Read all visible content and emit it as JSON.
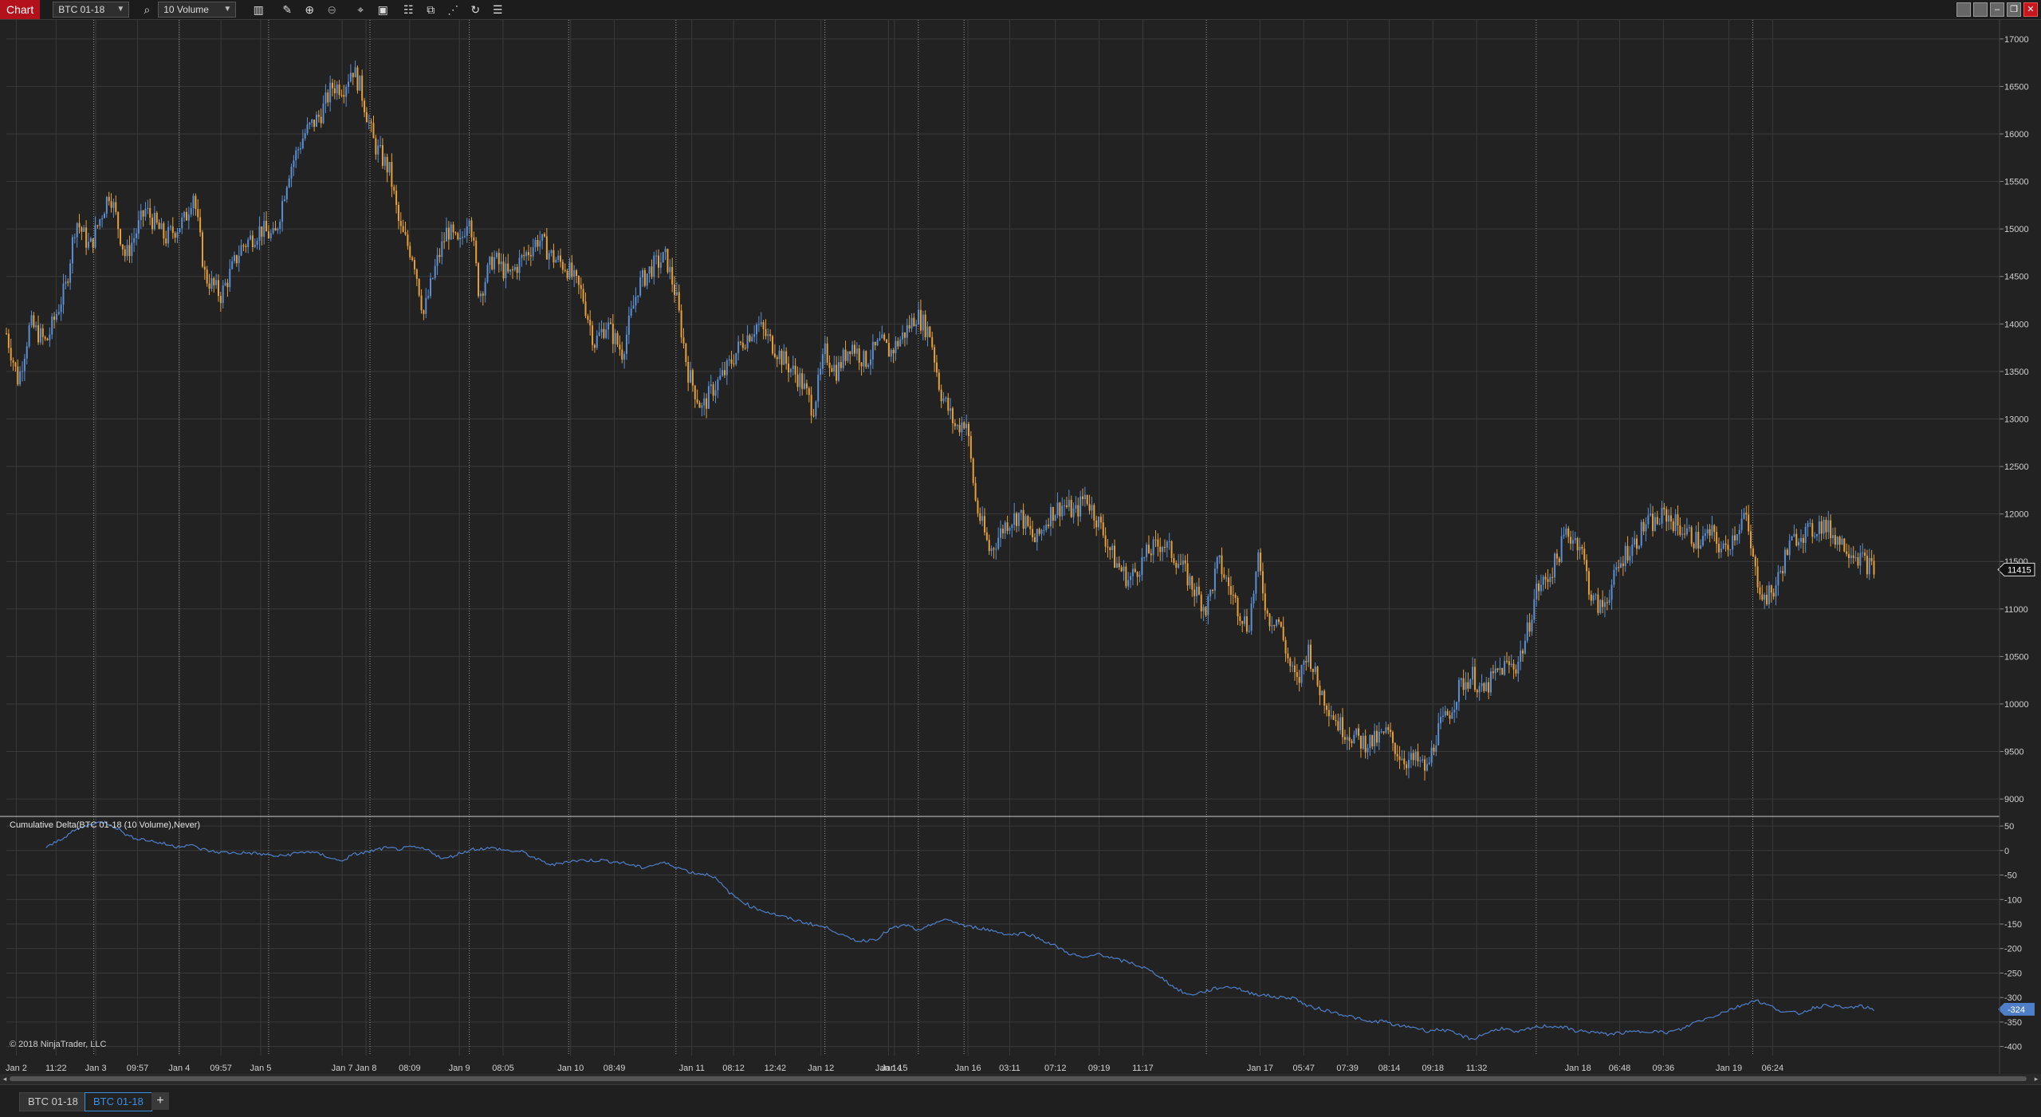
{
  "toolbar": {
    "title": "Chart",
    "instrument": "BTC 01-18",
    "bar_type": "10 Volume"
  },
  "icons": [
    "bar-chart-icon",
    "pencil-icon",
    "zoom-in-icon",
    "zoom-out-icon",
    "crosshair-icon",
    "properties-icon",
    "data-box-icon",
    "strategies-icon",
    "indicators-icon",
    "reload-icon",
    "list-icon"
  ],
  "window_buttons": [
    "tile-icon",
    "tile2-icon",
    "minimize-icon",
    "restore-icon",
    "close-icon"
  ],
  "colors": {
    "up": "#5b8fd4",
    "down": "#e8a035",
    "delta_line": "#4f7fc9",
    "background": "#222222",
    "grid": "#3a3a3a",
    "separator": "#bfbfbf",
    "price_tag_bg": "#111111",
    "delta_tag_bg": "#4f7fc9"
  },
  "indicator_label": "Cumulative Delta(BTC 01-18 (10 Volume),Never)",
  "copyright": "© 2018 NinjaTrader, LLC",
  "tabs": [
    "BTC 01-18",
    "BTC 01-18"
  ],
  "active_tab": 1,
  "chart_data": {
    "type": "candlestick",
    "price_axis": {
      "ticks": [
        "17000",
        "16500",
        "16000",
        "15500",
        "15000",
        "14500",
        "14000",
        "13500",
        "13000",
        "12500",
        "12000",
        "11500",
        "11000",
        "10500",
        "10000",
        "9500",
        "9000"
      ],
      "ylim": [
        8850,
        17200
      ],
      "last_price": "11415"
    },
    "delta_axis": {
      "ticks": [
        "50",
        "0",
        "-50",
        "-100",
        "-150",
        "-200",
        "-250",
        "-300",
        "-350",
        "-400"
      ],
      "ylim": [
        -412,
        68
      ],
      "last_value": "-324"
    },
    "x_labels": [
      "Jan 2",
      "11:22",
      "Jan 3",
      "09:57",
      "Jan 4",
      "09:57",
      "Jan 5",
      "Jan 7",
      "Jan 8",
      "08:09",
      "Jan 9",
      "08:05",
      "Jan 10",
      "08:49",
      "Jan 11",
      "08:12",
      "12:42",
      "Jan 12",
      "Jan 14",
      "Jan 15",
      "Jan 16",
      "03:11",
      "07:12",
      "09:19",
      "11:17",
      "Jan 17",
      "05:47",
      "07:39",
      "08:14",
      "09:18",
      "11:32",
      "Jan 18",
      "06:48",
      "09:36",
      "Jan 19",
      "06:24"
    ],
    "x_positions": [
      0.5,
      2.5,
      4.5,
      6.6,
      8.7,
      10.8,
      12.8,
      16.9,
      18.1,
      20.3,
      22.8,
      25.0,
      28.4,
      30.6,
      34.5,
      36.6,
      38.7,
      41.0,
      44.4,
      44.7,
      48.4,
      50.5,
      52.8,
      55.0,
      57.2,
      63.1,
      65.3,
      67.5,
      69.6,
      71.8,
      74.0,
      79.1,
      81.2,
      83.4,
      86.7,
      88.9
    ],
    "day_separators": [
      4.4,
      8.7,
      13.2,
      18.3,
      23.3,
      28.3,
      33.7,
      41.2,
      45.9,
      48.2,
      60.4,
      77.0,
      87.9
    ],
    "price_path": [
      [
        0,
        13900
      ],
      [
        0.6,
        13400
      ],
      [
        1.2,
        14000
      ],
      [
        2.0,
        13800
      ],
      [
        3.0,
        14400
      ],
      [
        3.5,
        15100
      ],
      [
        4.2,
        14800
      ],
      [
        5.2,
        15400
      ],
      [
        6.0,
        14700
      ],
      [
        7.0,
        15200
      ],
      [
        8.0,
        14900
      ],
      [
        9.0,
        15100
      ],
      [
        9.4,
        15400
      ],
      [
        10.0,
        14500
      ],
      [
        10.8,
        14300
      ],
      [
        11.8,
        14800
      ],
      [
        12.8,
        15000
      ],
      [
        13.5,
        14900
      ],
      [
        14.2,
        15600
      ],
      [
        15.0,
        16000
      ],
      [
        15.8,
        16200
      ],
      [
        16.4,
        16500
      ],
      [
        17.0,
        16500
      ],
      [
        17.4,
        16700
      ],
      [
        17.8,
        16500
      ],
      [
        18.5,
        15900
      ],
      [
        19.3,
        15600
      ],
      [
        19.8,
        15000
      ],
      [
        20.5,
        14700
      ],
      [
        21.0,
        14100
      ],
      [
        21.6,
        14600
      ],
      [
        22.2,
        15000
      ],
      [
        22.8,
        14800
      ],
      [
        23.3,
        15200
      ],
      [
        23.8,
        14300
      ],
      [
        24.5,
        14700
      ],
      [
        25.3,
        14500
      ],
      [
        26.0,
        14700
      ],
      [
        26.8,
        14900
      ],
      [
        27.5,
        14700
      ],
      [
        28.2,
        14600
      ],
      [
        29.0,
        14300
      ],
      [
        29.6,
        13800
      ],
      [
        30.2,
        14000
      ],
      [
        31.0,
        13700
      ],
      [
        31.8,
        14400
      ],
      [
        32.5,
        14600
      ],
      [
        33.2,
        14700
      ],
      [
        33.7,
        14300
      ],
      [
        34.3,
        13500
      ],
      [
        35.0,
        13100
      ],
      [
        35.5,
        13300
      ],
      [
        36.2,
        13500
      ],
      [
        37.0,
        13800
      ],
      [
        37.8,
        14000
      ],
      [
        38.5,
        13800
      ],
      [
        39.2,
        13600
      ],
      [
        40.0,
        13400
      ],
      [
        40.6,
        13100
      ],
      [
        41.2,
        13700
      ],
      [
        41.8,
        13500
      ],
      [
        42.5,
        13800
      ],
      [
        43.2,
        13600
      ],
      [
        44.0,
        13800
      ],
      [
        44.5,
        13700
      ],
      [
        45.2,
        13900
      ],
      [
        45.8,
        14100
      ],
      [
        46.5,
        13900
      ],
      [
        47.0,
        13300
      ],
      [
        47.8,
        12900
      ],
      [
        48.3,
        13000
      ],
      [
        48.8,
        12100
      ],
      [
        49.5,
        11600
      ],
      [
        50.3,
        11900
      ],
      [
        51.0,
        12000
      ],
      [
        51.8,
        11700
      ],
      [
        52.5,
        12000
      ],
      [
        53.2,
        12100
      ],
      [
        53.8,
        12000
      ],
      [
        54.3,
        12200
      ],
      [
        55.0,
        11900
      ],
      [
        55.8,
        11500
      ],
      [
        56.5,
        11300
      ],
      [
        57.5,
        11600
      ],
      [
        58.2,
        11700
      ],
      [
        59.0,
        11500
      ],
      [
        59.8,
        11200
      ],
      [
        60.4,
        11000
      ],
      [
        61.0,
        11500
      ],
      [
        61.8,
        11100
      ],
      [
        62.5,
        10800
      ],
      [
        63.0,
        11500
      ],
      [
        63.5,
        10900
      ],
      [
        64.0,
        10900
      ],
      [
        64.6,
        10400
      ],
      [
        65.0,
        10200
      ],
      [
        65.5,
        10600
      ],
      [
        66.0,
        10200
      ],
      [
        66.5,
        10000
      ],
      [
        67.0,
        9800
      ],
      [
        67.5,
        9700
      ],
      [
        68.2,
        9600
      ],
      [
        68.8,
        9600
      ],
      [
        69.5,
        9700
      ],
      [
        70.0,
        9500
      ],
      [
        70.5,
        9400
      ],
      [
        71.0,
        9400
      ],
      [
        71.5,
        9300
      ],
      [
        72.0,
        9700
      ],
      [
        72.6,
        9900
      ],
      [
        73.2,
        10200
      ],
      [
        73.8,
        10300
      ],
      [
        74.3,
        10100
      ],
      [
        74.9,
        10300
      ],
      [
        75.4,
        10400
      ],
      [
        76.0,
        10400
      ],
      [
        76.5,
        10700
      ],
      [
        77.0,
        11200
      ],
      [
        77.5,
        11300
      ],
      [
        78.0,
        11500
      ],
      [
        78.5,
        11800
      ],
      [
        79.2,
        11700
      ],
      [
        79.8,
        11100
      ],
      [
        80.3,
        11000
      ],
      [
        80.9,
        11300
      ],
      [
        81.5,
        11600
      ],
      [
        82.0,
        11700
      ],
      [
        82.5,
        11900
      ],
      [
        83.0,
        11900
      ],
      [
        83.5,
        12000
      ],
      [
        84.0,
        11900
      ],
      [
        84.6,
        11800
      ],
      [
        85.2,
        11700
      ],
      [
        85.8,
        11800
      ],
      [
        86.4,
        11600
      ],
      [
        87.0,
        11800
      ],
      [
        87.5,
        12000
      ],
      [
        88.0,
        11400
      ],
      [
        88.5,
        11100
      ],
      [
        89.0,
        11200
      ],
      [
        89.6,
        11600
      ],
      [
        90.2,
        11800
      ],
      [
        90.8,
        11800
      ],
      [
        91.3,
        11900
      ],
      [
        91.9,
        11800
      ],
      [
        92.4,
        11700
      ],
      [
        93.0,
        11600
      ],
      [
        93.5,
        11500
      ],
      [
        94.0,
        11415
      ]
    ],
    "delta_path": [
      [
        2.0,
        5
      ],
      [
        2.8,
        25
      ],
      [
        3.5,
        42
      ],
      [
        4.3,
        55
      ],
      [
        5.0,
        58
      ],
      [
        5.6,
        45
      ],
      [
        6.2,
        28
      ],
      [
        7.0,
        22
      ],
      [
        7.8,
        15
      ],
      [
        8.5,
        8
      ],
      [
        9.2,
        12
      ],
      [
        9.8,
        3
      ],
      [
        10.5,
        -3
      ],
      [
        11.5,
        -5
      ],
      [
        12.3,
        -5
      ],
      [
        13.0,
        -8
      ],
      [
        13.7,
        -12
      ],
      [
        14.5,
        -6
      ],
      [
        15.2,
        -2
      ],
      [
        16.0,
        -10
      ],
      [
        16.8,
        -22
      ],
      [
        17.5,
        -8
      ],
      [
        18.3,
        -2
      ],
      [
        19.0,
        5
      ],
      [
        19.8,
        3
      ],
      [
        20.5,
        7
      ],
      [
        21.3,
        0
      ],
      [
        22.0,
        -18
      ],
      [
        22.8,
        -6
      ],
      [
        23.5,
        3
      ],
      [
        24.5,
        5
      ],
      [
        25.2,
        0
      ],
      [
        26.0,
        -3
      ],
      [
        26.8,
        -20
      ],
      [
        27.5,
        -30
      ],
      [
        28.2,
        -22
      ],
      [
        29.0,
        -20
      ],
      [
        30.0,
        -20
      ],
      [
        31.0,
        -25
      ],
      [
        32.0,
        -35
      ],
      [
        33.0,
        -25
      ],
      [
        33.5,
        -30
      ],
      [
        34.5,
        -45
      ],
      [
        35.5,
        -50
      ],
      [
        36.5,
        -90
      ],
      [
        37.5,
        -115
      ],
      [
        38.5,
        -128
      ],
      [
        39.5,
        -140
      ],
      [
        40.5,
        -150
      ],
      [
        41.5,
        -160
      ],
      [
        42.3,
        -178
      ],
      [
        43.0,
        -185
      ],
      [
        43.8,
        -180
      ],
      [
        44.5,
        -160
      ],
      [
        45.3,
        -152
      ],
      [
        46.0,
        -165
      ],
      [
        46.8,
        -145
      ],
      [
        47.5,
        -142
      ],
      [
        48.3,
        -155
      ],
      [
        49.0,
        -158
      ],
      [
        49.8,
        -165
      ],
      [
        50.5,
        -172
      ],
      [
        51.3,
        -168
      ],
      [
        52.0,
        -180
      ],
      [
        52.8,
        -195
      ],
      [
        53.5,
        -210
      ],
      [
        54.3,
        -220
      ],
      [
        55.0,
        -210
      ],
      [
        55.8,
        -222
      ],
      [
        56.5,
        -228
      ],
      [
        57.3,
        -240
      ],
      [
        58.0,
        -255
      ],
      [
        58.8,
        -280
      ],
      [
        59.5,
        -295
      ],
      [
        60.3,
        -288
      ],
      [
        61.0,
        -280
      ],
      [
        61.8,
        -278
      ],
      [
        62.5,
        -290
      ],
      [
        63.3,
        -295
      ],
      [
        64.0,
        -300
      ],
      [
        64.8,
        -300
      ],
      [
        65.5,
        -318
      ],
      [
        66.3,
        -325
      ],
      [
        67.0,
        -332
      ],
      [
        67.8,
        -340
      ],
      [
        68.5,
        -350
      ],
      [
        69.3,
        -348
      ],
      [
        70.0,
        -358
      ],
      [
        70.8,
        -360
      ],
      [
        71.5,
        -368
      ],
      [
        72.3,
        -365
      ],
      [
        73.0,
        -375
      ],
      [
        73.8,
        -385
      ],
      [
        74.5,
        -372
      ],
      [
        75.3,
        -362
      ],
      [
        76.0,
        -372
      ],
      [
        76.8,
        -362
      ],
      [
        77.5,
        -358
      ],
      [
        78.3,
        -360
      ],
      [
        79.0,
        -368
      ],
      [
        79.8,
        -370
      ],
      [
        80.5,
        -375
      ],
      [
        81.3,
        -372
      ],
      [
        82.0,
        -370
      ],
      [
        82.8,
        -368
      ],
      [
        83.5,
        -372
      ],
      [
        84.3,
        -365
      ],
      [
        85.0,
        -350
      ],
      [
        85.8,
        -340
      ],
      [
        86.5,
        -328
      ],
      [
        87.2,
        -318
      ],
      [
        88.0,
        -305
      ],
      [
        88.8,
        -318
      ],
      [
        89.5,
        -330
      ],
      [
        90.3,
        -332
      ],
      [
        91.0,
        -320
      ],
      [
        91.8,
        -315
      ],
      [
        92.5,
        -322
      ],
      [
        93.3,
        -318
      ],
      [
        94.0,
        -324
      ]
    ]
  }
}
